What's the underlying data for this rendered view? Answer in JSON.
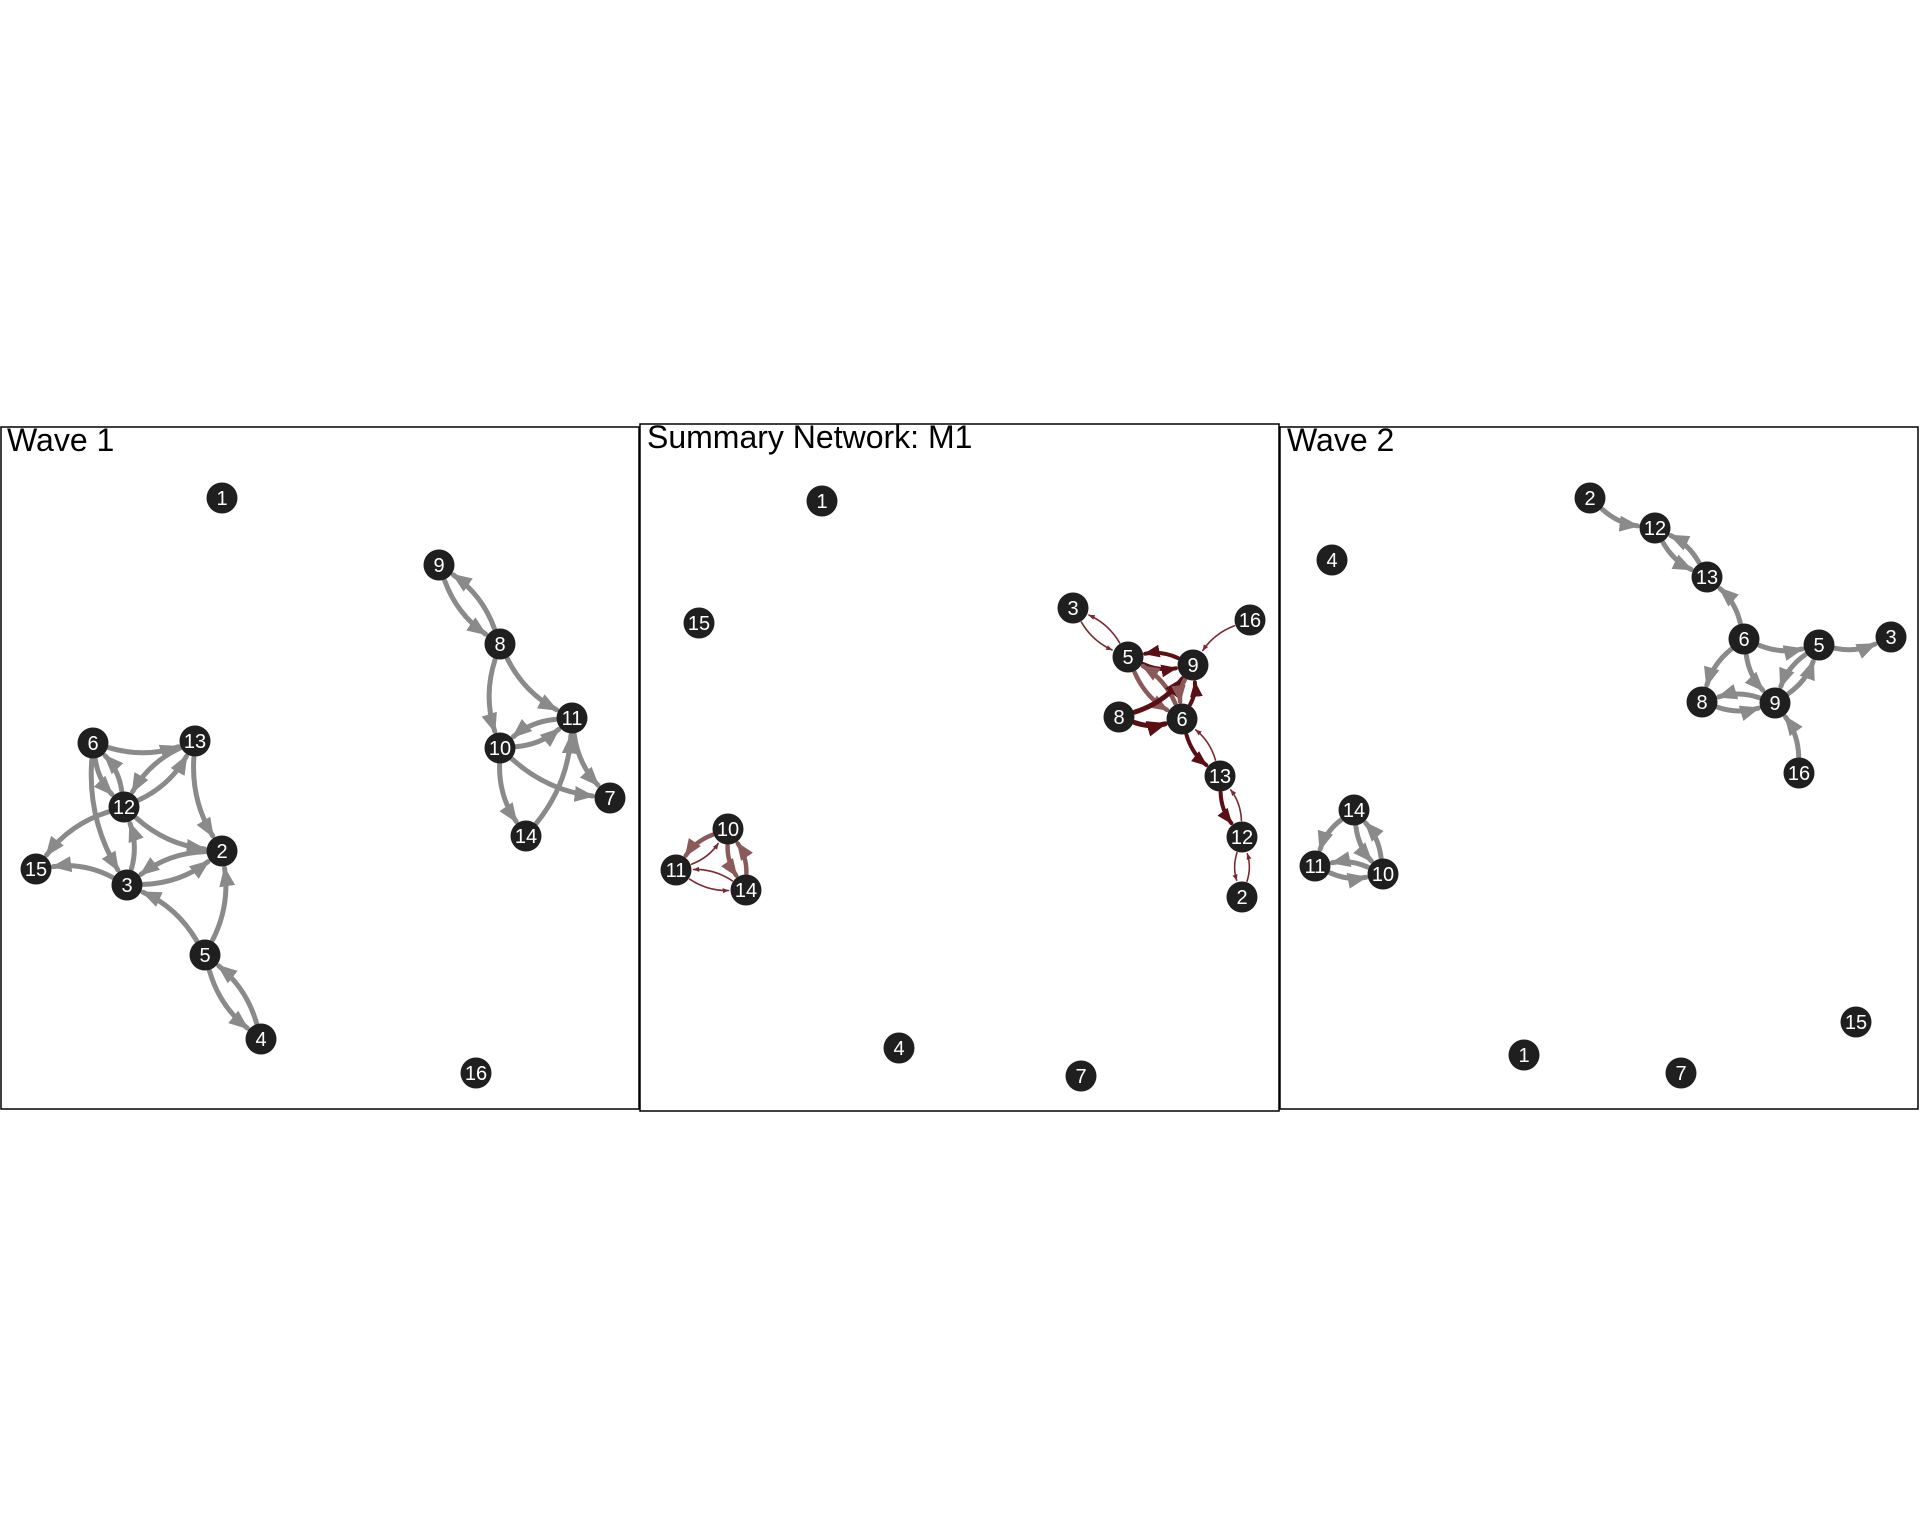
{
  "colors": {
    "node_fill": "#1f1f1f",
    "node_label": "#ffffff",
    "wave_edge": "#8a8a8a",
    "summary_edge_strong": "#5a0f14",
    "summary_edge_medium": "#7a2a30",
    "summary_edge_light": "#8a5a5a",
    "frame": "#000000"
  },
  "panels": [
    {
      "id": "wave1",
      "title": "Wave 1",
      "nodes": [
        {
          "id": "1",
          "label": "1"
        },
        {
          "id": "2",
          "label": "2"
        },
        {
          "id": "3",
          "label": "3"
        },
        {
          "id": "4",
          "label": "4"
        },
        {
          "id": "5",
          "label": "5"
        },
        {
          "id": "6",
          "label": "6"
        },
        {
          "id": "7",
          "label": "7"
        },
        {
          "id": "8",
          "label": "8"
        },
        {
          "id": "9",
          "label": "9"
        },
        {
          "id": "10",
          "label": "10"
        },
        {
          "id": "11",
          "label": "11"
        },
        {
          "id": "12",
          "label": "12"
        },
        {
          "id": "13",
          "label": "13"
        },
        {
          "id": "14",
          "label": "14"
        },
        {
          "id": "15",
          "label": "15"
        },
        {
          "id": "16",
          "label": "16"
        }
      ],
      "edges": [
        {
          "from": "9",
          "to": "8"
        },
        {
          "from": "8",
          "to": "9"
        },
        {
          "from": "8",
          "to": "10"
        },
        {
          "from": "8",
          "to": "11"
        },
        {
          "from": "11",
          "to": "10"
        },
        {
          "from": "10",
          "to": "11"
        },
        {
          "from": "10",
          "to": "7"
        },
        {
          "from": "11",
          "to": "7"
        },
        {
          "from": "10",
          "to": "14"
        },
        {
          "from": "14",
          "to": "11"
        },
        {
          "from": "6",
          "to": "13"
        },
        {
          "from": "6",
          "to": "12"
        },
        {
          "from": "12",
          "to": "6"
        },
        {
          "from": "12",
          "to": "13"
        },
        {
          "from": "13",
          "to": "12"
        },
        {
          "from": "13",
          "to": "2"
        },
        {
          "from": "6",
          "to": "3"
        },
        {
          "from": "12",
          "to": "2"
        },
        {
          "from": "3",
          "to": "12"
        },
        {
          "from": "3",
          "to": "15"
        },
        {
          "from": "12",
          "to": "15"
        },
        {
          "from": "3",
          "to": "2"
        },
        {
          "from": "2",
          "to": "3"
        },
        {
          "from": "5",
          "to": "3"
        },
        {
          "from": "5",
          "to": "2"
        },
        {
          "from": "5",
          "to": "4"
        },
        {
          "from": "4",
          "to": "5"
        }
      ]
    },
    {
      "id": "summary",
      "title": "Summary Network: M1",
      "nodes": [
        {
          "id": "1",
          "label": "1"
        },
        {
          "id": "2",
          "label": "2"
        },
        {
          "id": "3",
          "label": "3"
        },
        {
          "id": "4",
          "label": "4"
        },
        {
          "id": "5",
          "label": "5"
        },
        {
          "id": "6",
          "label": "6"
        },
        {
          "id": "7",
          "label": "7"
        },
        {
          "id": "8",
          "label": "8"
        },
        {
          "id": "9",
          "label": "9"
        },
        {
          "id": "10",
          "label": "10"
        },
        {
          "id": "11",
          "label": "11"
        },
        {
          "id": "12",
          "label": "12"
        },
        {
          "id": "13",
          "label": "13"
        },
        {
          "id": "14",
          "label": "14"
        },
        {
          "id": "15",
          "label": "15"
        },
        {
          "id": "16",
          "label": "16"
        }
      ],
      "edges": [
        {
          "from": "3",
          "to": "5",
          "weight": 1
        },
        {
          "from": "5",
          "to": "3",
          "weight": 1
        },
        {
          "from": "16",
          "to": "9",
          "weight": 1
        },
        {
          "from": "5",
          "to": "9",
          "weight": 3
        },
        {
          "from": "9",
          "to": "5",
          "weight": 3
        },
        {
          "from": "5",
          "to": "6",
          "weight": 2
        },
        {
          "from": "6",
          "to": "5",
          "weight": 2
        },
        {
          "from": "8",
          "to": "9",
          "weight": 4
        },
        {
          "from": "8",
          "to": "6",
          "weight": 4
        },
        {
          "from": "6",
          "to": "9",
          "weight": 3
        },
        {
          "from": "9",
          "to": "6",
          "weight": 2
        },
        {
          "from": "6",
          "to": "13",
          "weight": 3
        },
        {
          "from": "13",
          "to": "6",
          "weight": 1
        },
        {
          "from": "13",
          "to": "12",
          "weight": 3
        },
        {
          "from": "12",
          "to": "13",
          "weight": 1
        },
        {
          "from": "12",
          "to": "2",
          "weight": 1
        },
        {
          "from": "2",
          "to": "12",
          "weight": 1
        },
        {
          "from": "10",
          "to": "11",
          "weight": 2
        },
        {
          "from": "11",
          "to": "10",
          "weight": 1
        },
        {
          "from": "10",
          "to": "14",
          "weight": 2
        },
        {
          "from": "14",
          "to": "10",
          "weight": 2
        },
        {
          "from": "11",
          "to": "14",
          "weight": 1
        },
        {
          "from": "14",
          "to": "11",
          "weight": 1
        }
      ]
    },
    {
      "id": "wave2",
      "title": "Wave 2",
      "nodes": [
        {
          "id": "1",
          "label": "1"
        },
        {
          "id": "2",
          "label": "2"
        },
        {
          "id": "3",
          "label": "3"
        },
        {
          "id": "4",
          "label": "4"
        },
        {
          "id": "5",
          "label": "5"
        },
        {
          "id": "6",
          "label": "6"
        },
        {
          "id": "7",
          "label": "7"
        },
        {
          "id": "8",
          "label": "8"
        },
        {
          "id": "9",
          "label": "9"
        },
        {
          "id": "10",
          "label": "10"
        },
        {
          "id": "11",
          "label": "11"
        },
        {
          "id": "12",
          "label": "12"
        },
        {
          "id": "13",
          "label": "13"
        },
        {
          "id": "14",
          "label": "14"
        },
        {
          "id": "15",
          "label": "15"
        },
        {
          "id": "16",
          "label": "16"
        }
      ],
      "edges": [
        {
          "from": "2",
          "to": "12"
        },
        {
          "from": "12",
          "to": "13"
        },
        {
          "from": "13",
          "to": "12"
        },
        {
          "from": "6",
          "to": "13"
        },
        {
          "from": "6",
          "to": "5"
        },
        {
          "from": "5",
          "to": "3"
        },
        {
          "from": "6",
          "to": "9"
        },
        {
          "from": "6",
          "to": "8"
        },
        {
          "from": "5",
          "to": "9"
        },
        {
          "from": "9",
          "to": "5"
        },
        {
          "from": "8",
          "to": "9"
        },
        {
          "from": "9",
          "to": "8"
        },
        {
          "from": "16",
          "to": "9"
        },
        {
          "from": "14",
          "to": "11"
        },
        {
          "from": "14",
          "to": "10"
        },
        {
          "from": "10",
          "to": "14"
        },
        {
          "from": "11",
          "to": "10"
        },
        {
          "from": "10",
          "to": "11"
        }
      ]
    }
  ]
}
